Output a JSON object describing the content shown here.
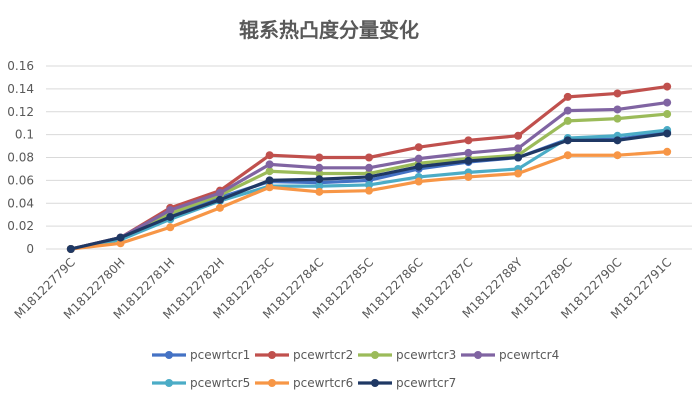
{
  "chart_data": {
    "type": "line",
    "title": "辊系热凸度分量变化",
    "xlabel": "",
    "ylabel": "",
    "ylim": [
      0,
      0.16
    ],
    "yticks": [
      0,
      0.02,
      0.04,
      0.06,
      0.08,
      0.1,
      0.12,
      0.14,
      0.16
    ],
    "ytick_labels": [
      "0",
      "0.02",
      "0.04",
      "0.06",
      "0.08",
      "0.1",
      "0.12",
      "0.14",
      "0.16"
    ],
    "grid": true,
    "legend_position": "bottom",
    "categories": [
      "M18122779C",
      "M18122780H",
      "M18122781H",
      "M18122782H",
      "M18122783C",
      "M18122784C",
      "M18122785C",
      "M18122786C",
      "M18122787C",
      "M18122788Y",
      "M18122789C",
      "M18122790C",
      "M18122791C"
    ],
    "series": [
      {
        "name": "pcewrtcr1",
        "color": "#4472C4",
        "values": [
          0,
          0.009,
          0.03,
          0.045,
          0.059,
          0.058,
          0.06,
          0.07,
          0.076,
          0.08,
          0.096,
          0.096,
          0.102
        ]
      },
      {
        "name": "pcewrtcr2",
        "color": "#C0504D",
        "values": [
          0,
          0.01,
          0.036,
          0.051,
          0.082,
          0.08,
          0.08,
          0.089,
          0.095,
          0.099,
          0.133,
          0.136,
          0.142
        ]
      },
      {
        "name": "pcewrtcr3",
        "color": "#9BBB59",
        "values": [
          0,
          0.009,
          0.031,
          0.047,
          0.068,
          0.066,
          0.066,
          0.075,
          0.079,
          0.082,
          0.112,
          0.114,
          0.118
        ]
      },
      {
        "name": "pcewrtcr4",
        "color": "#8064A2",
        "values": [
          0,
          0.01,
          0.034,
          0.049,
          0.074,
          0.071,
          0.071,
          0.079,
          0.084,
          0.088,
          0.121,
          0.122,
          0.128
        ]
      },
      {
        "name": "pcewrtcr5",
        "color": "#4BACC6",
        "values": [
          0,
          0.008,
          0.026,
          0.042,
          0.055,
          0.055,
          0.056,
          0.063,
          0.067,
          0.07,
          0.097,
          0.099,
          0.104
        ]
      },
      {
        "name": "pcewrtcr6",
        "color": "#F79646",
        "values": [
          0,
          0.005,
          0.019,
          0.036,
          0.054,
          0.05,
          0.051,
          0.059,
          0.063,
          0.066,
          0.082,
          0.082,
          0.085
        ]
      },
      {
        "name": "pcewrtcr7",
        "color": "#1F3864",
        "values": [
          0,
          0.01,
          0.028,
          0.043,
          0.06,
          0.061,
          0.063,
          0.072,
          0.077,
          0.08,
          0.095,
          0.095,
          0.101
        ]
      }
    ]
  }
}
